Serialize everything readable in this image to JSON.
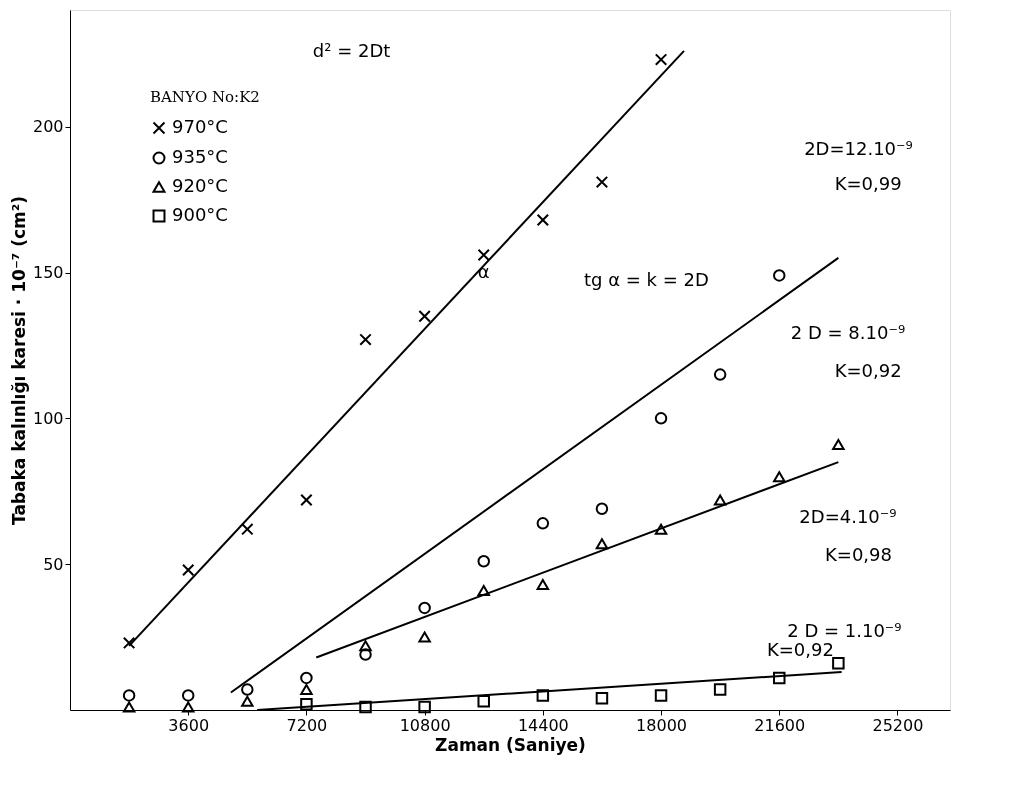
{
  "chart_data": {
    "type": "scatter",
    "xlabel": "Zaman (Saniye)",
    "ylabel": "Tabaka kalınlığı karesi · 10⁻⁷ (cm²)",
    "xlim": [
      0,
      26800
    ],
    "ylim": [
      0,
      240
    ],
    "xticks": [
      3600,
      7200,
      10800,
      14400,
      18000,
      21600,
      25200
    ],
    "yticks": [
      50,
      100,
      150,
      200
    ],
    "legend": "top left",
    "legend_title": "BANYO No:K2",
    "annotations": [
      "d² = 2Dt",
      "tg α = k = 2D",
      "α",
      "2D=12.10⁻⁹",
      "K=0,99",
      "2 D = 8.10⁻⁹",
      "K=0,92",
      "2D=4.10⁻⁹",
      "K=0,98",
      "2 D = 1.10⁻⁹",
      "K=0,92"
    ],
    "series": [
      {
        "name": "970°C",
        "color": "#000000",
        "marker": "cross",
        "x": [
          1800,
          3600,
          5400,
          7200,
          9000,
          10800,
          12600,
          14400,
          16200,
          18000
        ],
        "values": [
          23,
          48,
          62,
          72,
          127,
          135,
          156,
          168,
          181,
          223
        ]
      },
      {
        "name": "935°C",
        "color": "#000000",
        "marker": "circle",
        "x": [
          1800,
          3600,
          5400,
          7200,
          9000,
          10800,
          12600,
          14400,
          16200,
          18000,
          19800,
          21600
        ],
        "values": [
          5,
          5,
          7,
          11,
          19,
          35,
          51,
          64,
          69,
          100,
          115,
          149
        ]
      },
      {
        "name": "920°C",
        "color": "#000000",
        "marker": "triangle",
        "x": [
          1800,
          3600,
          5400,
          7200,
          9000,
          10800,
          12600,
          14400,
          16200,
          18000,
          19800,
          21600,
          23400
        ],
        "values": [
          1,
          1,
          3,
          7,
          22,
          25,
          41,
          43,
          57,
          62,
          72,
          80,
          91
        ]
      },
      {
        "name": "900°C",
        "color": "#000000",
        "marker": "square",
        "x": [
          7200,
          9000,
          10800,
          12600,
          14400,
          16200,
          18000,
          19800,
          21600,
          23400
        ],
        "values": [
          2,
          1,
          1,
          3,
          5,
          4,
          5,
          7,
          11,
          16
        ]
      },
      {
        "type": "line",
        "color": "#000000",
        "x": [
          1800,
          18700
        ],
        "values": [
          22,
          226
        ]
      },
      {
        "type": "line",
        "color": "#000000",
        "x": [
          4900,
          23400
        ],
        "values": [
          6,
          155
        ]
      },
      {
        "type": "line",
        "color": "#000000",
        "x": [
          7500,
          23400
        ],
        "values": [
          18,
          85
        ]
      },
      {
        "type": "line",
        "color": "#000000",
        "x": [
          5700,
          23500
        ],
        "values": [
          0,
          13
        ]
      }
    ]
  }
}
